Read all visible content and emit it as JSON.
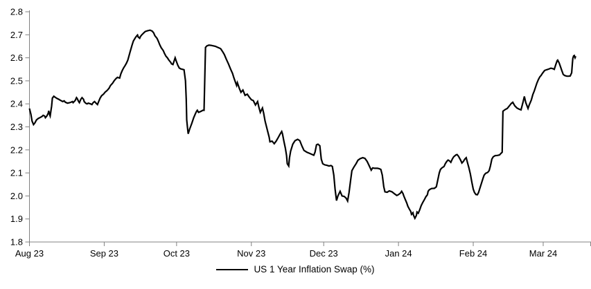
{
  "chart_data": {
    "type": "line",
    "title": "",
    "legend_label": "US 1 Year Inflation Swap (%)",
    "series_name": "US 1 Year Inflation Swap (%)",
    "series_color": "#000000",
    "axis_color": "#808080",
    "text_color": "#000000",
    "grid": false,
    "legend_position": "bottom-center",
    "ylim": [
      1.8,
      2.8
    ],
    "y_ticks": [
      "1.8",
      "1.9",
      "2.0",
      "2.1",
      "2.2",
      "2.3",
      "2.4",
      "2.5",
      "2.6",
      "2.7",
      "2.8"
    ],
    "x_ticks": [
      {
        "label": "Aug 23",
        "day": 0
      },
      {
        "label": "Sep 23",
        "day": 31
      },
      {
        "label": "Oct 23",
        "day": 61
      },
      {
        "label": "Nov 23",
        "day": 92
      },
      {
        "label": "Dec 23",
        "day": 122
      },
      {
        "label": "Jan 24",
        "day": 153
      },
      {
        "label": "Feb 24",
        "day": 184
      },
      {
        "label": "Mar 24",
        "day": 213
      }
    ],
    "x_axis_end_day": 233,
    "x_unit": "days since 2023-08-01",
    "points": [
      [
        0.0,
        2.38
      ],
      [
        0.6,
        2.355
      ],
      [
        1.1,
        2.325
      ],
      [
        1.7,
        2.31
      ],
      [
        2.3,
        2.318
      ],
      [
        2.9,
        2.33
      ],
      [
        3.7,
        2.337
      ],
      [
        4.3,
        2.34
      ],
      [
        5.2,
        2.345
      ],
      [
        5.7,
        2.35
      ],
      [
        6.3,
        2.347
      ],
      [
        6.6,
        2.34
      ],
      [
        7.2,
        2.347
      ],
      [
        7.8,
        2.36
      ],
      [
        8.0,
        2.37
      ],
      [
        8.3,
        2.355
      ],
      [
        8.6,
        2.347
      ],
      [
        9.2,
        2.39
      ],
      [
        9.5,
        2.425
      ],
      [
        10.1,
        2.433
      ],
      [
        10.9,
        2.427
      ],
      [
        11.5,
        2.423
      ],
      [
        12.1,
        2.42
      ],
      [
        12.9,
        2.415
      ],
      [
        13.8,
        2.41
      ],
      [
        14.4,
        2.413
      ],
      [
        14.9,
        2.407
      ],
      [
        15.8,
        2.403
      ],
      [
        16.7,
        2.405
      ],
      [
        17.2,
        2.407
      ],
      [
        17.8,
        2.41
      ],
      [
        18.1,
        2.405
      ],
      [
        19.0,
        2.415
      ],
      [
        19.5,
        2.427
      ],
      [
        19.8,
        2.423
      ],
      [
        20.4,
        2.41
      ],
      [
        20.7,
        2.405
      ],
      [
        21.3,
        2.42
      ],
      [
        21.8,
        2.427
      ],
      [
        22.4,
        2.42
      ],
      [
        22.7,
        2.41
      ],
      [
        23.3,
        2.403
      ],
      [
        23.9,
        2.4
      ],
      [
        24.4,
        2.403
      ],
      [
        25.3,
        2.4
      ],
      [
        25.9,
        2.397
      ],
      [
        26.4,
        2.405
      ],
      [
        27.0,
        2.41
      ],
      [
        27.6,
        2.403
      ],
      [
        28.2,
        2.397
      ],
      [
        28.7,
        2.41
      ],
      [
        29.3,
        2.425
      ],
      [
        29.9,
        2.435
      ],
      [
        30.8,
        2.443
      ],
      [
        31.3,
        2.45
      ],
      [
        32.2,
        2.458
      ],
      [
        33.0,
        2.468
      ],
      [
        33.6,
        2.48
      ],
      [
        34.5,
        2.49
      ],
      [
        35.1,
        2.5
      ],
      [
        35.9,
        2.51
      ],
      [
        36.5,
        2.515
      ],
      [
        37.4,
        2.512
      ],
      [
        37.9,
        2.53
      ],
      [
        38.5,
        2.545
      ],
      [
        39.1,
        2.557
      ],
      [
        39.7,
        2.567
      ],
      [
        40.2,
        2.576
      ],
      [
        40.8,
        2.59
      ],
      [
        41.7,
        2.625
      ],
      [
        42.5,
        2.654
      ],
      [
        43.1,
        2.673
      ],
      [
        44.0,
        2.689
      ],
      [
        44.6,
        2.697
      ],
      [
        44.8,
        2.699
      ],
      [
        45.1,
        2.69
      ],
      [
        45.7,
        2.685
      ],
      [
        46.0,
        2.692
      ],
      [
        46.6,
        2.7
      ],
      [
        47.4,
        2.708
      ],
      [
        48.0,
        2.714
      ],
      [
        48.9,
        2.717
      ],
      [
        50.0,
        2.72
      ],
      [
        50.9,
        2.716
      ],
      [
        51.5,
        2.708
      ],
      [
        52.0,
        2.696
      ],
      [
        52.9,
        2.684
      ],
      [
        53.5,
        2.671
      ],
      [
        54.0,
        2.657
      ],
      [
        54.6,
        2.644
      ],
      [
        55.5,
        2.631
      ],
      [
        56.0,
        2.619
      ],
      [
        56.6,
        2.607
      ],
      [
        57.2,
        2.6
      ],
      [
        57.8,
        2.59
      ],
      [
        58.6,
        2.58
      ],
      [
        58.9,
        2.574
      ],
      [
        59.5,
        2.571
      ],
      [
        60.4,
        2.6
      ],
      [
        60.9,
        2.585
      ],
      [
        61.5,
        2.568
      ],
      [
        62.1,
        2.556
      ],
      [
        62.7,
        2.552
      ],
      [
        63.5,
        2.55
      ],
      [
        64.1,
        2.548
      ],
      [
        64.7,
        2.5
      ],
      [
        65.0,
        2.42
      ],
      [
        65.2,
        2.33
      ],
      [
        65.5,
        2.3
      ],
      [
        65.8,
        2.27
      ],
      [
        66.4,
        2.29
      ],
      [
        67.3,
        2.315
      ],
      [
        68.1,
        2.34
      ],
      [
        68.7,
        2.355
      ],
      [
        69.3,
        2.368
      ],
      [
        69.6,
        2.372
      ],
      [
        70.1,
        2.363
      ],
      [
        71.0,
        2.367
      ],
      [
        71.9,
        2.372
      ],
      [
        72.4,
        2.372
      ],
      [
        73.0,
        2.645
      ],
      [
        73.6,
        2.652
      ],
      [
        74.4,
        2.655
      ],
      [
        75.3,
        2.654
      ],
      [
        76.2,
        2.652
      ],
      [
        77.0,
        2.65
      ],
      [
        77.9,
        2.646
      ],
      [
        78.8,
        2.642
      ],
      [
        79.3,
        2.639
      ],
      [
        80.2,
        2.625
      ],
      [
        80.8,
        2.614
      ],
      [
        81.6,
        2.594
      ],
      [
        82.5,
        2.574
      ],
      [
        83.4,
        2.551
      ],
      [
        84.2,
        2.532
      ],
      [
        84.8,
        2.512
      ],
      [
        85.4,
        2.494
      ],
      [
        85.9,
        2.48
      ],
      [
        86.2,
        2.492
      ],
      [
        87.1,
        2.465
      ],
      [
        87.7,
        2.45
      ],
      [
        88.5,
        2.46
      ],
      [
        89.4,
        2.437
      ],
      [
        90.3,
        2.442
      ],
      [
        91.1,
        2.43
      ],
      [
        92.0,
        2.418
      ],
      [
        92.8,
        2.414
      ],
      [
        93.7,
        2.395
      ],
      [
        94.6,
        2.41
      ],
      [
        95.1,
        2.386
      ],
      [
        95.7,
        2.363
      ],
      [
        96.6,
        2.382
      ],
      [
        97.1,
        2.36
      ],
      [
        97.7,
        2.325
      ],
      [
        98.3,
        2.3
      ],
      [
        98.9,
        2.275
      ],
      [
        99.4,
        2.255
      ],
      [
        99.7,
        2.235
      ],
      [
        100.6,
        2.238
      ],
      [
        101.5,
        2.227
      ],
      [
        102.3,
        2.238
      ],
      [
        103.2,
        2.255
      ],
      [
        104.0,
        2.27
      ],
      [
        104.6,
        2.28
      ],
      [
        104.9,
        2.27
      ],
      [
        105.5,
        2.237
      ],
      [
        106.1,
        2.207
      ],
      [
        106.6,
        2.175
      ],
      [
        106.9,
        2.14
      ],
      [
        107.5,
        2.13
      ],
      [
        107.8,
        2.165
      ],
      [
        108.3,
        2.195
      ],
      [
        109.2,
        2.225
      ],
      [
        110.1,
        2.24
      ],
      [
        111.2,
        2.246
      ],
      [
        112.1,
        2.24
      ],
      [
        113.0,
        2.216
      ],
      [
        113.8,
        2.198
      ],
      [
        115.0,
        2.19
      ],
      [
        116.1,
        2.185
      ],
      [
        117.0,
        2.181
      ],
      [
        117.9,
        2.177
      ],
      [
        118.4,
        2.19
      ],
      [
        119.0,
        2.222
      ],
      [
        119.6,
        2.225
      ],
      [
        120.4,
        2.218
      ],
      [
        121.0,
        2.16
      ],
      [
        121.6,
        2.14
      ],
      [
        122.4,
        2.135
      ],
      [
        123.3,
        2.133
      ],
      [
        124.2,
        2.13
      ],
      [
        125.0,
        2.132
      ],
      [
        125.6,
        2.128
      ],
      [
        126.2,
        2.09
      ],
      [
        126.7,
        2.03
      ],
      [
        127.3,
        1.98
      ],
      [
        127.9,
        2.0
      ],
      [
        128.8,
        2.02
      ],
      [
        129.6,
        2.0
      ],
      [
        130.5,
        1.998
      ],
      [
        131.3,
        1.99
      ],
      [
        131.9,
        1.978
      ],
      [
        132.5,
        2.015
      ],
      [
        133.1,
        2.065
      ],
      [
        133.7,
        2.11
      ],
      [
        134.5,
        2.125
      ],
      [
        135.4,
        2.14
      ],
      [
        136.2,
        2.155
      ],
      [
        137.1,
        2.162
      ],
      [
        138.2,
        2.166
      ],
      [
        139.1,
        2.163
      ],
      [
        140.0,
        2.15
      ],
      [
        140.8,
        2.132
      ],
      [
        141.7,
        2.112
      ],
      [
        142.3,
        2.122
      ],
      [
        143.1,
        2.12
      ],
      [
        144.3,
        2.12
      ],
      [
        145.1,
        2.118
      ],
      [
        145.7,
        2.115
      ],
      [
        146.3,
        2.09
      ],
      [
        146.9,
        2.04
      ],
      [
        147.4,
        2.018
      ],
      [
        148.3,
        2.016
      ],
      [
        149.2,
        2.022
      ],
      [
        150.3,
        2.018
      ],
      [
        151.5,
        2.008
      ],
      [
        152.3,
        2.002
      ],
      [
        152.9,
        2.005
      ],
      [
        153.8,
        2.012
      ],
      [
        154.3,
        2.02
      ],
      [
        154.9,
        2.01
      ],
      [
        155.2,
        2.0
      ],
      [
        155.8,
        1.985
      ],
      [
        156.4,
        1.97
      ],
      [
        156.9,
        1.955
      ],
      [
        157.5,
        1.943
      ],
      [
        158.1,
        1.932
      ],
      [
        158.4,
        1.92
      ],
      [
        159.0,
        1.927
      ],
      [
        159.2,
        1.917
      ],
      [
        159.8,
        1.903
      ],
      [
        160.4,
        1.915
      ],
      [
        160.7,
        1.93
      ],
      [
        161.2,
        1.925
      ],
      [
        161.8,
        1.94
      ],
      [
        162.4,
        1.958
      ],
      [
        163.0,
        1.97
      ],
      [
        163.8,
        1.985
      ],
      [
        164.4,
        1.997
      ],
      [
        165.0,
        2.005
      ],
      [
        165.3,
        2.02
      ],
      [
        165.8,
        2.027
      ],
      [
        166.7,
        2.032
      ],
      [
        167.9,
        2.033
      ],
      [
        168.7,
        2.04
      ],
      [
        169.3,
        2.07
      ],
      [
        169.9,
        2.1
      ],
      [
        170.4,
        2.115
      ],
      [
        171.0,
        2.122
      ],
      [
        171.9,
        2.128
      ],
      [
        172.4,
        2.14
      ],
      [
        173.0,
        2.15
      ],
      [
        173.6,
        2.156
      ],
      [
        174.2,
        2.152
      ],
      [
        174.7,
        2.146
      ],
      [
        175.3,
        2.16
      ],
      [
        175.9,
        2.17
      ],
      [
        176.8,
        2.178
      ],
      [
        177.3,
        2.18
      ],
      [
        177.9,
        2.172
      ],
      [
        178.8,
        2.155
      ],
      [
        179.3,
        2.143
      ],
      [
        179.9,
        2.15
      ],
      [
        180.5,
        2.16
      ],
      [
        181.1,
        2.166
      ],
      [
        181.6,
        2.145
      ],
      [
        182.2,
        2.122
      ],
      [
        182.8,
        2.095
      ],
      [
        183.4,
        2.06
      ],
      [
        184.0,
        2.03
      ],
      [
        184.5,
        2.015
      ],
      [
        185.1,
        2.006
      ],
      [
        185.7,
        2.005
      ],
      [
        186.2,
        2.015
      ],
      [
        186.8,
        2.035
      ],
      [
        187.4,
        2.055
      ],
      [
        188.0,
        2.075
      ],
      [
        188.5,
        2.09
      ],
      [
        189.1,
        2.098
      ],
      [
        190.0,
        2.102
      ],
      [
        190.6,
        2.11
      ],
      [
        191.1,
        2.13
      ],
      [
        191.7,
        2.16
      ],
      [
        192.3,
        2.17
      ],
      [
        193.1,
        2.175
      ],
      [
        194.0,
        2.176
      ],
      [
        194.9,
        2.178
      ],
      [
        195.5,
        2.185
      ],
      [
        196.0,
        2.19
      ],
      [
        196.3,
        2.368
      ],
      [
        197.2,
        2.375
      ],
      [
        198.1,
        2.38
      ],
      [
        198.9,
        2.39
      ],
      [
        199.8,
        2.402
      ],
      [
        200.4,
        2.407
      ],
      [
        201.2,
        2.392
      ],
      [
        202.1,
        2.382
      ],
      [
        203.0,
        2.377
      ],
      [
        203.8,
        2.374
      ],
      [
        204.7,
        2.41
      ],
      [
        205.2,
        2.432
      ],
      [
        205.8,
        2.405
      ],
      [
        206.7,
        2.38
      ],
      [
        207.2,
        2.395
      ],
      [
        208.1,
        2.417
      ],
      [
        208.7,
        2.44
      ],
      [
        209.3,
        2.456
      ],
      [
        209.8,
        2.472
      ],
      [
        210.4,
        2.49
      ],
      [
        211.0,
        2.505
      ],
      [
        211.6,
        2.517
      ],
      [
        212.1,
        2.523
      ],
      [
        212.7,
        2.533
      ],
      [
        213.6,
        2.545
      ],
      [
        214.4,
        2.548
      ],
      [
        215.3,
        2.551
      ],
      [
        216.2,
        2.555
      ],
      [
        217.0,
        2.553
      ],
      [
        217.6,
        2.55
      ],
      [
        218.2,
        2.57
      ],
      [
        218.8,
        2.588
      ],
      [
        219.0,
        2.59
      ],
      [
        219.6,
        2.578
      ],
      [
        220.2,
        2.56
      ],
      [
        220.7,
        2.545
      ],
      [
        221.3,
        2.528
      ],
      [
        221.9,
        2.523
      ],
      [
        222.8,
        2.52
      ],
      [
        223.6,
        2.52
      ],
      [
        224.2,
        2.521
      ],
      [
        224.8,
        2.535
      ],
      [
        225.1,
        2.575
      ],
      [
        225.3,
        2.598
      ],
      [
        225.6,
        2.608
      ],
      [
        225.9,
        2.61
      ],
      [
        226.2,
        2.6
      ],
      [
        226.5,
        2.607
      ]
    ]
  }
}
